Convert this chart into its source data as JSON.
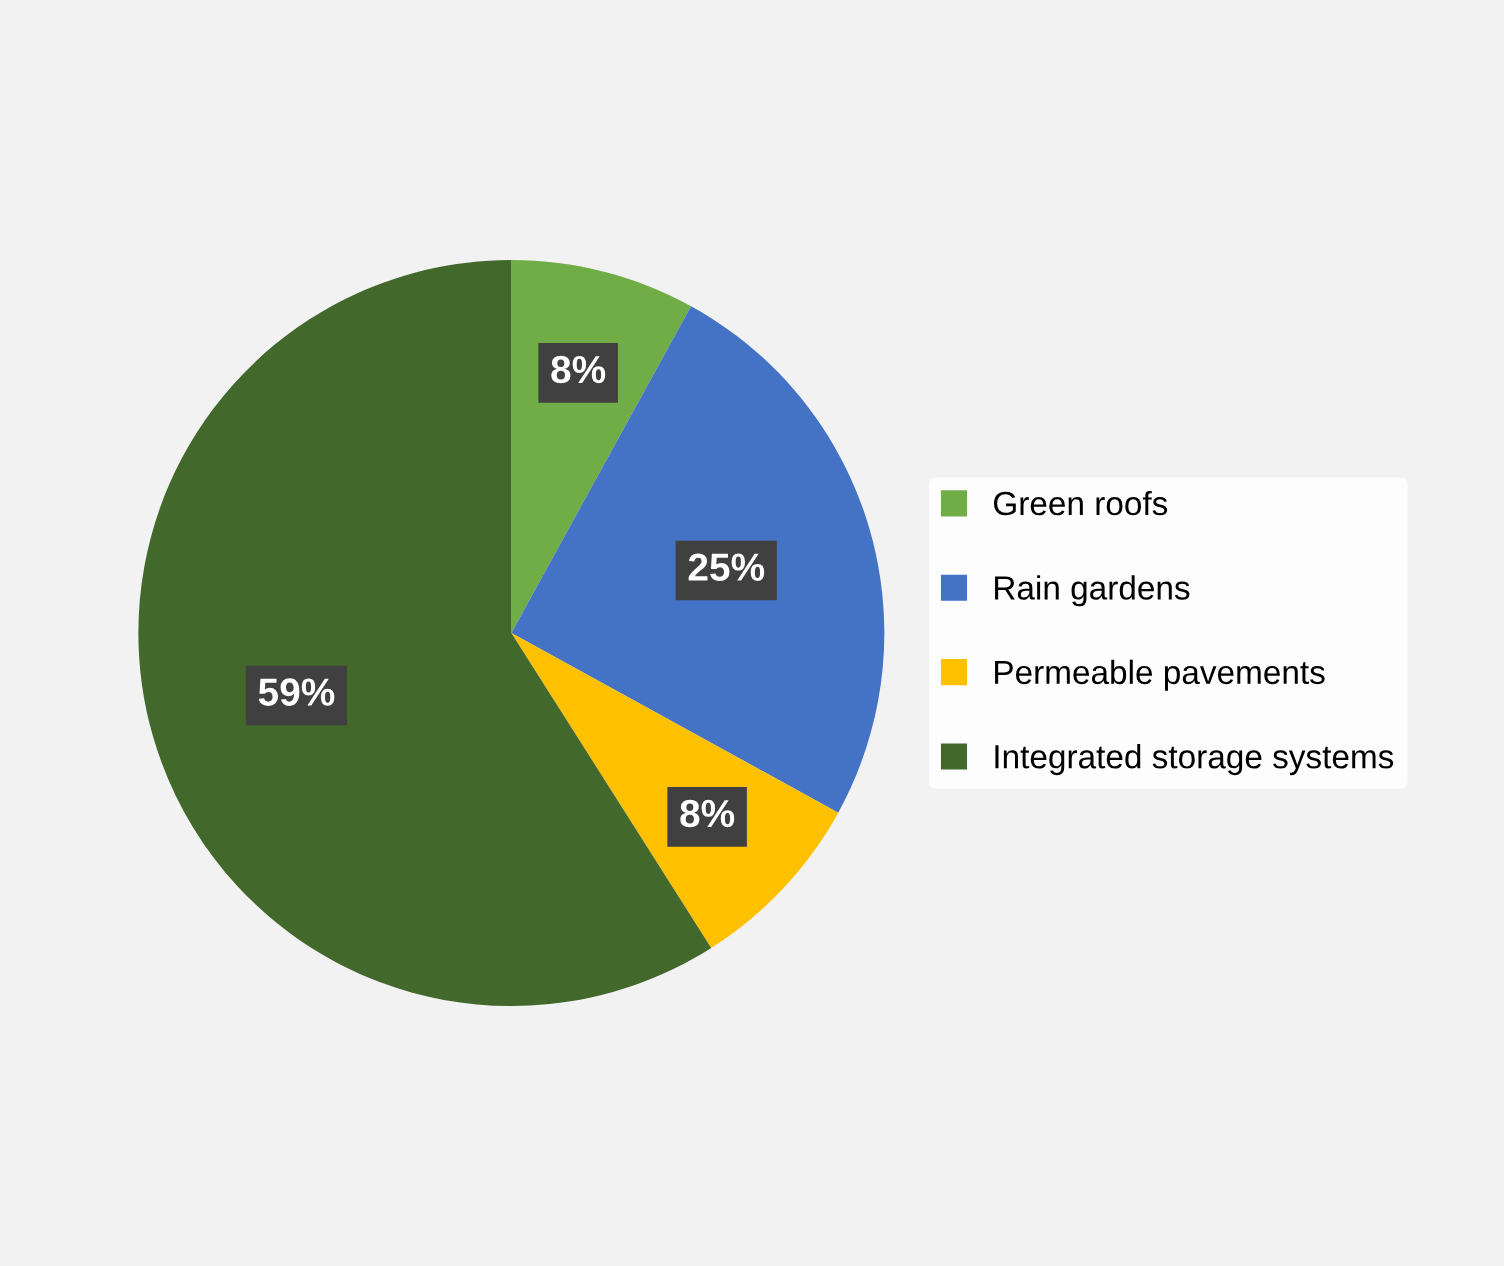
{
  "chart_data": {
    "type": "pie",
    "categories": [
      "Green roofs",
      "Rain gardens",
      "Permeable pavements",
      "Integrated storage systems"
    ],
    "values": [
      8,
      25,
      8,
      59
    ],
    "colors": [
      "#70ad47",
      "#4472c4",
      "#ffc000",
      "#43682b"
    ],
    "value_labels": [
      "8%",
      "25%",
      "8%",
      "59%"
    ],
    "legend": "right"
  }
}
